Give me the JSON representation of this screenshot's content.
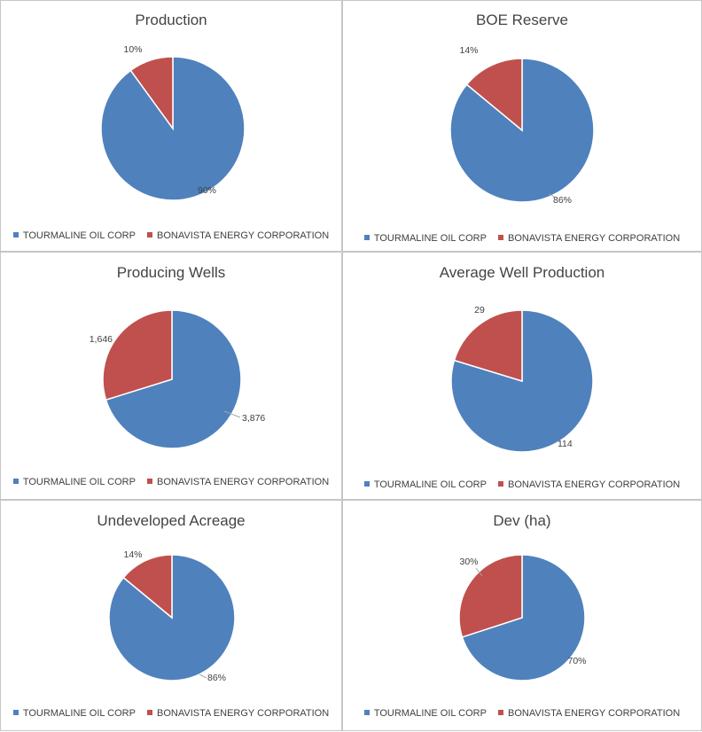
{
  "colors": {
    "tourmaline": "#4F81BD",
    "bonavista": "#C0504D"
  },
  "legend": [
    "TOURMALINE OIL CORP",
    "BONAVISTA ENERGY CORPORATION"
  ],
  "chart_data": [
    {
      "type": "pie",
      "title": "Production",
      "categories": [
        "TOURMALINE OIL CORP",
        "BONAVISTA ENERGY CORPORATION"
      ],
      "values": [
        90,
        10
      ],
      "labels": [
        "90%",
        "10%"
      ],
      "legend_position": "bottom"
    },
    {
      "type": "pie",
      "title": "BOE Reserve",
      "categories": [
        "TOURMALINE OIL CORP",
        "BONAVISTA ENERGY CORPORATION"
      ],
      "values": [
        86,
        14
      ],
      "labels": [
        "86%",
        "14%"
      ],
      "legend_position": "bottom"
    },
    {
      "type": "pie",
      "title": "Producing Wells",
      "categories": [
        "TOURMALINE OIL CORP",
        "BONAVISTA ENERGY CORPORATION"
      ],
      "values": [
        3876,
        1646
      ],
      "labels": [
        "3,876",
        "1,646"
      ],
      "legend_position": "bottom"
    },
    {
      "type": "pie",
      "title": "Average Well Production",
      "categories": [
        "TOURMALINE OIL CORP",
        "BONAVISTA ENERGY CORPORATION"
      ],
      "values": [
        114,
        29
      ],
      "labels": [
        "114",
        "29"
      ],
      "legend_position": "bottom"
    },
    {
      "type": "pie",
      "title": "Undeveloped Acreage",
      "categories": [
        "TOURMALINE OIL CORP",
        "BONAVISTA ENERGY CORPORATION"
      ],
      "values": [
        86,
        14
      ],
      "labels": [
        "86%",
        "14%"
      ],
      "legend_position": "bottom"
    },
    {
      "type": "pie",
      "title": "Dev (ha)",
      "categories": [
        "TOURMALINE OIL CORP",
        "BONAVISTA ENERGY CORPORATION"
      ],
      "values": [
        70,
        30
      ],
      "labels": [
        "70%",
        "30%"
      ],
      "legend_position": "bottom"
    }
  ]
}
